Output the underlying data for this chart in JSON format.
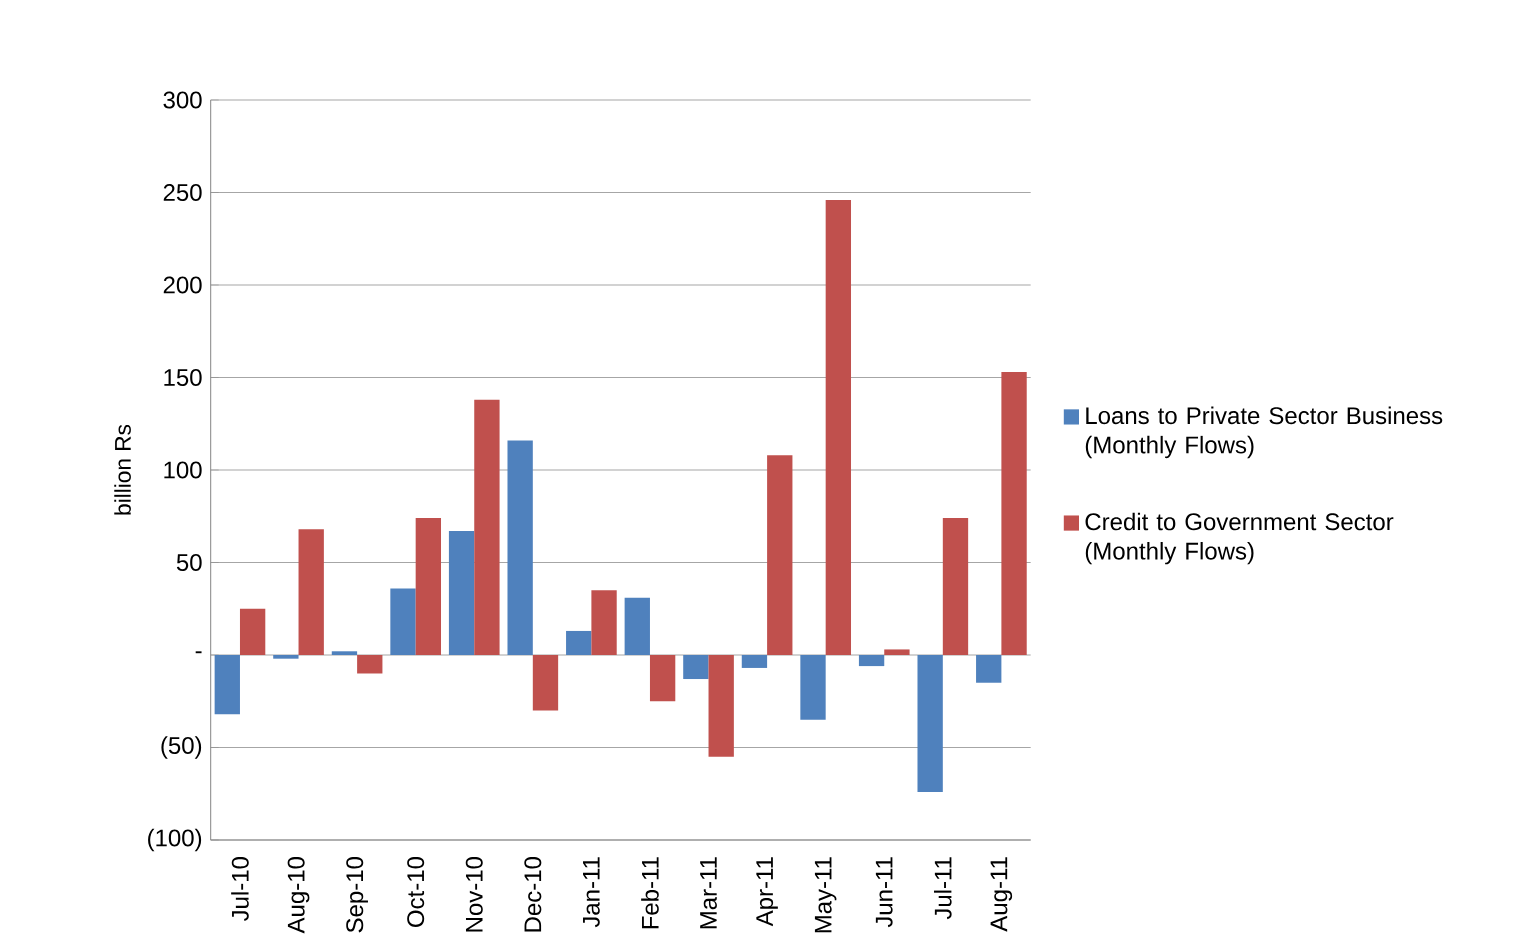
{
  "chart_data": {
    "type": "bar",
    "ylabel": "billion Rs",
    "categories": [
      "Jul-10",
      "Aug-10",
      "Sep-10",
      "Oct-10",
      "Nov-10",
      "Dec-10",
      "Jan-11",
      "Feb-11",
      "Mar-11",
      "Apr-11",
      "May-11",
      "Jun-11",
      "Jul-11",
      "Aug-11"
    ],
    "series": [
      {
        "name": "Loans to Private Sector Business (Monthly Flows)",
        "color": "#4f81bd",
        "values": [
          -32,
          -2,
          2,
          36,
          67,
          116,
          13,
          31,
          -13,
          -7,
          -35,
          -6,
          -74,
          -15
        ]
      },
      {
        "name": "Credit to Government Sector (Monthly Flows)",
        "color": "#c0504d",
        "values": [
          25,
          68,
          -10,
          74,
          138,
          -30,
          35,
          -25,
          -55,
          108,
          246,
          3,
          74,
          153
        ]
      }
    ],
    "ylim": [
      -100,
      300
    ],
    "yticks": [
      {
        "value": -100,
        "label": "(100)"
      },
      {
        "value": -50,
        "label": "(50)"
      },
      {
        "value": 0,
        "label": "-"
      },
      50,
      100,
      150,
      200,
      250,
      300
    ],
    "grid": "y",
    "legend": "right"
  }
}
